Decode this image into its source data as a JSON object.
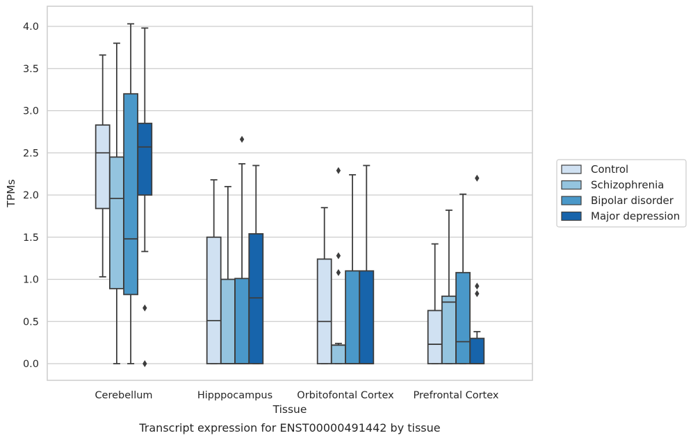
{
  "caption": "Transcript expression for ENST00000491442 by tissue",
  "chart_data": {
    "type": "boxplot",
    "xlabel": "Tissue",
    "ylabel": "TPMs",
    "ylim": [
      -0.19,
      4.24
    ],
    "yticks": [
      "0.0",
      "0.5",
      "1.0",
      "1.5",
      "2.0",
      "2.5",
      "3.0",
      "3.5",
      "4.0"
    ],
    "grid": "horizontal",
    "legend_position": "right",
    "categories": [
      "Cerebellum",
      "Hipppocampus",
      "Orbitofontal Cortex",
      "Prefrontal Cortex"
    ],
    "series": [
      {
        "name": "Control",
        "color": "#d0e1f2",
        "boxes": [
          {
            "whislo": 1.03,
            "q1": 1.84,
            "med": 2.5,
            "q3": 2.83,
            "whishi": 3.66,
            "fliers": []
          },
          {
            "whislo": 0.0,
            "q1": 0.0,
            "med": 0.51,
            "q3": 1.5,
            "whishi": 2.18,
            "fliers": []
          },
          {
            "whislo": 0.0,
            "q1": 0.0,
            "med": 0.5,
            "q3": 1.24,
            "whishi": 1.85,
            "fliers": []
          },
          {
            "whislo": 0.0,
            "q1": 0.0,
            "med": 0.23,
            "q3": 0.63,
            "whishi": 1.42,
            "fliers": []
          }
        ]
      },
      {
        "name": "Schizophrenia",
        "color": "#94c4df",
        "boxes": [
          {
            "whislo": 0.0,
            "q1": 0.89,
            "med": 1.96,
            "q3": 2.45,
            "whishi": 3.8,
            "fliers": []
          },
          {
            "whislo": 0.0,
            "q1": 0.0,
            "med": 0.0,
            "q3": 1.0,
            "whishi": 2.1,
            "fliers": []
          },
          {
            "whislo": 0.0,
            "q1": 0.0,
            "med": 0.22,
            "q3": 0.22,
            "whishi": 0.24,
            "fliers": [
              2.29,
              1.28,
              1.08
            ]
          },
          {
            "whislo": 0.0,
            "q1": 0.0,
            "med": 0.73,
            "q3": 0.8,
            "whishi": 1.82,
            "fliers": []
          }
        ]
      },
      {
        "name": "Bipolar disorder",
        "color": "#4a98c9",
        "boxes": [
          {
            "whislo": 0.0,
            "q1": 0.82,
            "med": 1.48,
            "q3": 3.2,
            "whishi": 4.03,
            "fliers": []
          },
          {
            "whislo": 0.0,
            "q1": 0.0,
            "med": 0.0,
            "q3": 1.01,
            "whishi": 2.37,
            "fliers": [
              2.66
            ]
          },
          {
            "whislo": 0.0,
            "q1": 0.0,
            "med": 0.0,
            "q3": 1.1,
            "whishi": 2.24,
            "fliers": []
          },
          {
            "whislo": 0.0,
            "q1": 0.0,
            "med": 0.26,
            "q3": 1.08,
            "whishi": 2.01,
            "fliers": []
          }
        ]
      },
      {
        "name": "Major depression",
        "color": "#1764ab",
        "boxes": [
          {
            "whislo": 1.33,
            "q1": 2.0,
            "med": 2.57,
            "q3": 2.85,
            "whishi": 3.98,
            "fliers": [
              0.66,
              0.0
            ]
          },
          {
            "whislo": 0.0,
            "q1": 0.0,
            "med": 0.78,
            "q3": 1.54,
            "whishi": 2.35,
            "fliers": []
          },
          {
            "whislo": 0.0,
            "q1": 0.0,
            "med": 0.0,
            "q3": 1.1,
            "whishi": 2.35,
            "fliers": []
          },
          {
            "whislo": 0.0,
            "q1": 0.0,
            "med": 0.0,
            "q3": 0.3,
            "whishi": 0.38,
            "fliers": [
              2.2,
              0.92,
              0.83
            ]
          }
        ]
      }
    ]
  }
}
